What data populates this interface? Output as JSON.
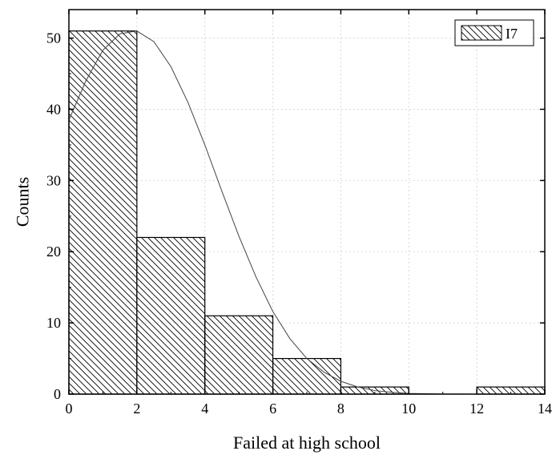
{
  "chart_data": {
    "type": "bar",
    "subtype": "histogram",
    "xlabel": "Failed at high school",
    "ylabel": "Counts",
    "xlim": [
      0,
      14
    ],
    "ylim": [
      0,
      54
    ],
    "x_ticks": [
      "0",
      "2",
      "4",
      "6",
      "8",
      "10",
      "12",
      "14"
    ],
    "y_ticks": [
      "0",
      "10",
      "20",
      "30",
      "40",
      "50"
    ],
    "grid": "dotted, light gray",
    "legend": {
      "position": "top-right",
      "entries": [
        "I7"
      ]
    },
    "bar_fill": "diagonal hatch",
    "bars": [
      {
        "bin": [
          0,
          2
        ],
        "value": 51
      },
      {
        "bin": [
          2,
          4
        ],
        "value": 22
      },
      {
        "bin": [
          4,
          6
        ],
        "value": 11
      },
      {
        "bin": [
          6,
          8
        ],
        "value": 5
      },
      {
        "bin": [
          8,
          10
        ],
        "value": 1
      },
      {
        "bin": [
          10,
          12
        ],
        "value": 0
      },
      {
        "bin": [
          12,
          14
        ],
        "value": 1
      }
    ],
    "fit_curve": {
      "type": "normal",
      "points": [
        [
          0,
          38.5
        ],
        [
          0.5,
          44
        ],
        [
          1,
          48.3
        ],
        [
          1.5,
          50.6
        ],
        [
          2,
          51
        ],
        [
          2.5,
          49.5
        ],
        [
          3,
          46
        ],
        [
          3.5,
          41
        ],
        [
          4,
          35
        ],
        [
          4.5,
          28.5
        ],
        [
          5,
          22.2
        ],
        [
          5.5,
          16.5
        ],
        [
          6,
          11.6
        ],
        [
          6.5,
          7.8
        ],
        [
          7,
          5
        ],
        [
          7.5,
          3.1
        ],
        [
          8,
          1.8
        ],
        [
          8.5,
          1.0
        ],
        [
          9,
          0.5
        ],
        [
          9.5,
          0.25
        ],
        [
          10,
          0.1
        ],
        [
          10.5,
          0.05
        ],
        [
          11,
          0.02
        ],
        [
          12,
          0
        ],
        [
          14,
          0
        ]
      ]
    },
    "colors": {
      "axis": "#000000",
      "bar_stroke": "#000000",
      "hatch": "#000000",
      "curve": "#444444",
      "grid": "#d9d9d9"
    }
  }
}
